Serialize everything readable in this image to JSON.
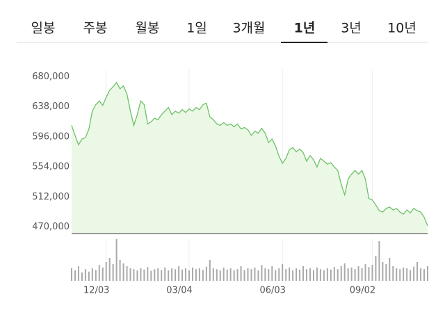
{
  "tabs": {
    "items": [
      "일봉",
      "주봉",
      "월봉",
      "1일",
      "3개월",
      "1년",
      "3년",
      "10년"
    ],
    "selected": 5
  },
  "chart_data": {
    "type": "line",
    "categories": [
      null,
      null,
      null,
      null,
      null,
      null,
      null,
      null,
      null,
      null,
      "12/03",
      null,
      null,
      null,
      null,
      null,
      null,
      null,
      null,
      null,
      null,
      null,
      null,
      null,
      null,
      null,
      null,
      null,
      null,
      null,
      null,
      null,
      null,
      null,
      "03/04",
      null,
      null,
      null,
      null,
      null,
      null,
      null,
      null,
      null,
      null,
      null,
      null,
      null,
      null,
      null,
      null,
      null,
      null,
      null,
      null,
      null,
      null,
      null,
      null,
      null,
      null,
      "06/03",
      null,
      null,
      null,
      null,
      null,
      null,
      null,
      null,
      null,
      null,
      null,
      null,
      null,
      null,
      null,
      null,
      null,
      null,
      null,
      null,
      null,
      null,
      null,
      null,
      null,
      "09/02",
      null,
      null,
      null,
      null,
      null,
      null,
      null,
      null,
      null,
      null,
      null,
      null,
      null,
      null,
      null,
      null
    ],
    "series": [
      {
        "color": "#6cc167",
        "fill": "#eaf8e5",
        "values": [
          612000,
          598000,
          585000,
          593000,
          595000,
          607000,
          632000,
          641000,
          646000,
          640000,
          651000,
          661000,
          666000,
          672000,
          663000,
          667000,
          656000,
          632000,
          612000,
          627000,
          646000,
          641000,
          614000,
          617000,
          622000,
          620000,
          627000,
          632000,
          637000,
          627000,
          632000,
          629000,
          634000,
          630000,
          635000,
          632000,
          637000,
          634000,
          641000,
          643000,
          624000,
          620000,
          614000,
          612000,
          616000,
          612000,
          614000,
          610000,
          614000,
          607000,
          609000,
          606000,
          598000,
          604000,
          601000,
          608000,
          601000,
          588000,
          593000,
          583000,
          569000,
          559000,
          566000,
          578000,
          581000,
          575000,
          579000,
          574000,
          562000,
          570000,
          564000,
          554000,
          566000,
          562000,
          558000,
          560000,
          554000,
          549000,
          530000,
          515000,
          537000,
          544000,
          549000,
          544000,
          549000,
          537000,
          510000,
          508000,
          501000,
          493000,
          491000,
          496000,
          498000,
          494000,
          496000,
          491000,
          488000,
          494000,
          490000,
          496000,
          493000,
          491000,
          484000,
          472000
        ]
      },
      {
        "type": "bar",
        "axis": "y2",
        "color": "#a9a9a9",
        "values": [
          30,
          25,
          35,
          20,
          28,
          22,
          30,
          26,
          38,
          32,
          45,
          55,
          40,
          100,
          50,
          42,
          35,
          30,
          28,
          25,
          30,
          27,
          33,
          24,
          28,
          30,
          26,
          32,
          25,
          30,
          28,
          35,
          27,
          30,
          25,
          32,
          28,
          30,
          26,
          34,
          50,
          30,
          28,
          25,
          32,
          27,
          30,
          25,
          28,
          35,
          26,
          30,
          28,
          32,
          25,
          38,
          30,
          28,
          35,
          26,
          30,
          40,
          28,
          32,
          25,
          30,
          27,
          35,
          28,
          30,
          26,
          32,
          28,
          25,
          30,
          27,
          33,
          28,
          35,
          42,
          30,
          32,
          28,
          35,
          30,
          40,
          33,
          38,
          60,
          95,
          45,
          40,
          55,
          35,
          30,
          28,
          32,
          30,
          26,
          34,
          45,
          30,
          28,
          35
        ]
      }
    ],
    "ylim": [
      461000,
      690000
    ],
    "yticks": [
      {
        "value": 470000,
        "label": "470,000"
      },
      {
        "value": 512000,
        "label": "512,000"
      },
      {
        "value": 554000,
        "label": "554,000"
      },
      {
        "value": 596000,
        "label": "596,000"
      },
      {
        "value": 638000,
        "label": "638,000"
      },
      {
        "value": 680000,
        "label": "680,000"
      }
    ],
    "y2lim": [
      0,
      100
    ],
    "grid": "x"
  }
}
